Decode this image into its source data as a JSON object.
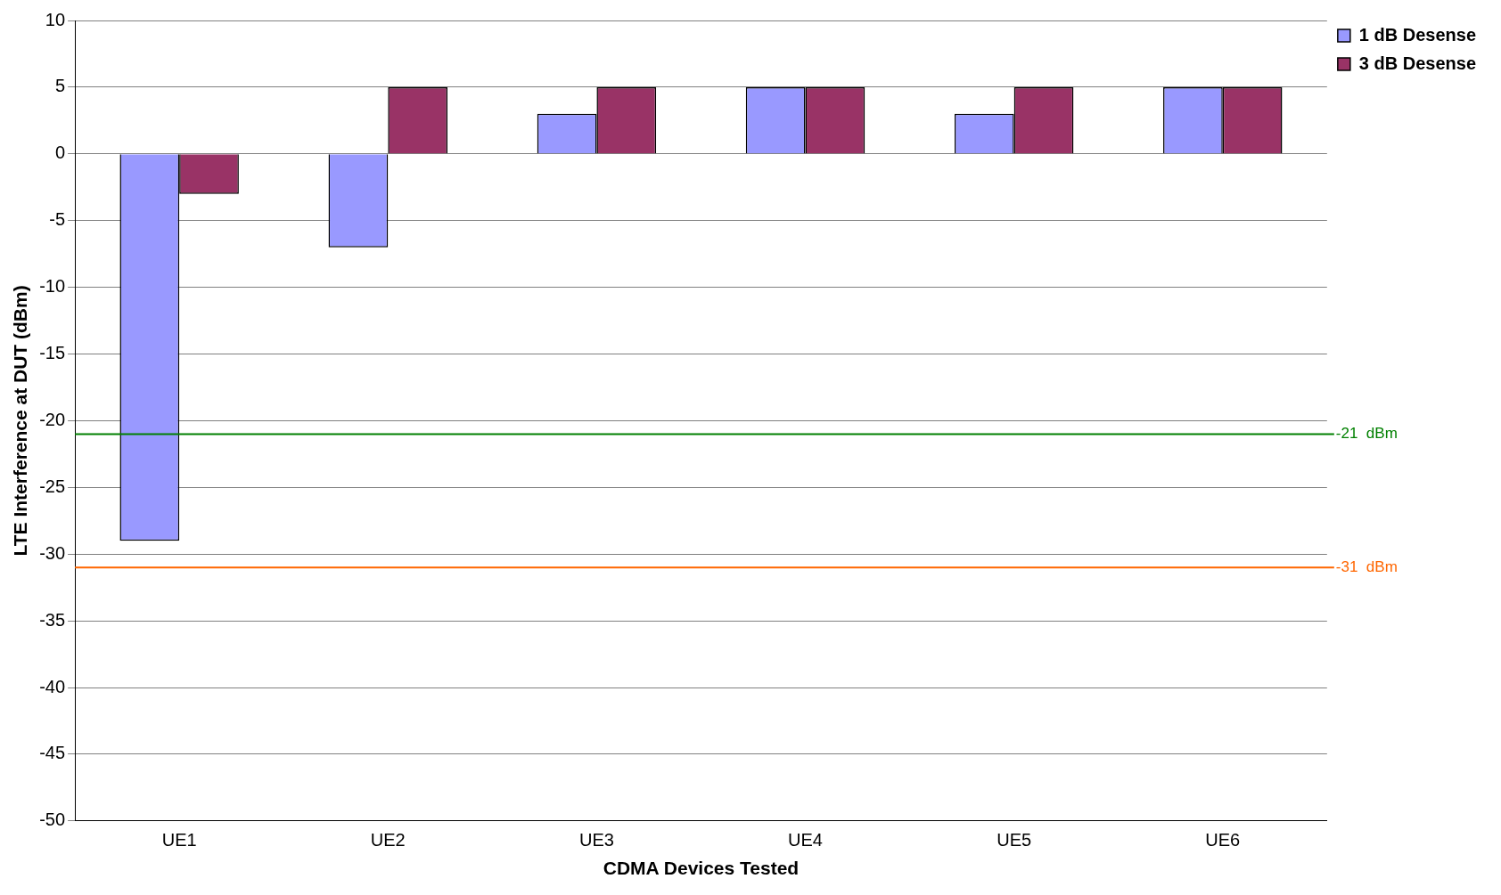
{
  "chart_data": {
    "type": "bar",
    "xlabel": "CDMA Devices Tested",
    "ylabel": "LTE Interference at DUT (dBm)",
    "categories": [
      "UE1",
      "UE2",
      "UE3",
      "UE4",
      "UE5",
      "UE6"
    ],
    "series": [
      {
        "name": "1 dB Desense",
        "color": "#9999ff",
        "values": [
          -29,
          -7,
          3,
          5,
          3,
          5
        ]
      },
      {
        "name": "3 dB Desense",
        "color": "#993366",
        "values": [
          -3,
          5,
          5,
          5,
          5,
          5
        ]
      }
    ],
    "ylim": [
      -50,
      10
    ],
    "yticks": [
      -50,
      -45,
      -40,
      -35,
      -30,
      -25,
      -20,
      -15,
      -10,
      -5,
      0,
      5,
      10
    ],
    "grid": "y",
    "legend": "right",
    "ref_lines": [
      {
        "axis": "y",
        "value": -21,
        "label": "-21  dBm",
        "color": "#008000"
      },
      {
        "axis": "y",
        "value": -31,
        "label": "-31  dBm",
        "color": "#ff6600"
      }
    ]
  }
}
